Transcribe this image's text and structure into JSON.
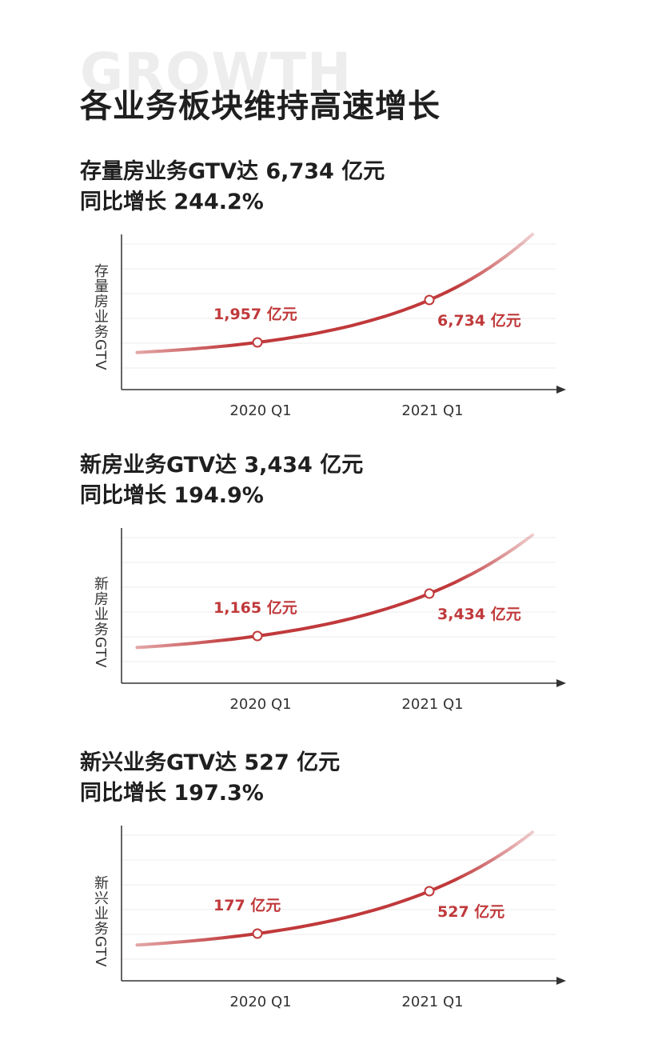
{
  "watermark": "GROWTH",
  "title": "各业务板块维持高速增长",
  "chart_data": [
    {
      "type": "line",
      "heading_line1": "存量房业务GTV达 6,734 亿元",
      "heading_line2": "同比增长 244.2%",
      "ylabel": "存量房业务GTV",
      "categories": [
        "2020 Q1",
        "2021 Q1"
      ],
      "values": [
        1957,
        6734
      ],
      "value_labels": [
        "1,957 亿元",
        "6,734 亿元"
      ],
      "yoy_growth_percent": 244.2,
      "unit": "亿元",
      "grid": true,
      "line_color": "#c0393b"
    },
    {
      "type": "line",
      "heading_line1": "新房业务GTV达 3,434 亿元",
      "heading_line2": "同比增长 194.9%",
      "ylabel": "新房业务GTV",
      "categories": [
        "2020 Q1",
        "2021 Q1"
      ],
      "values": [
        1165,
        3434
      ],
      "value_labels": [
        "1,165 亿元",
        "3,434 亿元"
      ],
      "yoy_growth_percent": 194.9,
      "unit": "亿元",
      "grid": true,
      "line_color": "#c0393b"
    },
    {
      "type": "line",
      "heading_line1": "新兴业务GTV达 527 亿元",
      "heading_line2": "同比增长 197.3%",
      "ylabel": "新兴业务GTV",
      "categories": [
        "2020 Q1",
        "2021 Q1"
      ],
      "values": [
        177,
        527
      ],
      "value_labels": [
        "177 亿元",
        "527 亿元"
      ],
      "yoy_growth_percent": 197.3,
      "unit": "亿元",
      "grid": true,
      "line_color": "#c0393b"
    }
  ]
}
